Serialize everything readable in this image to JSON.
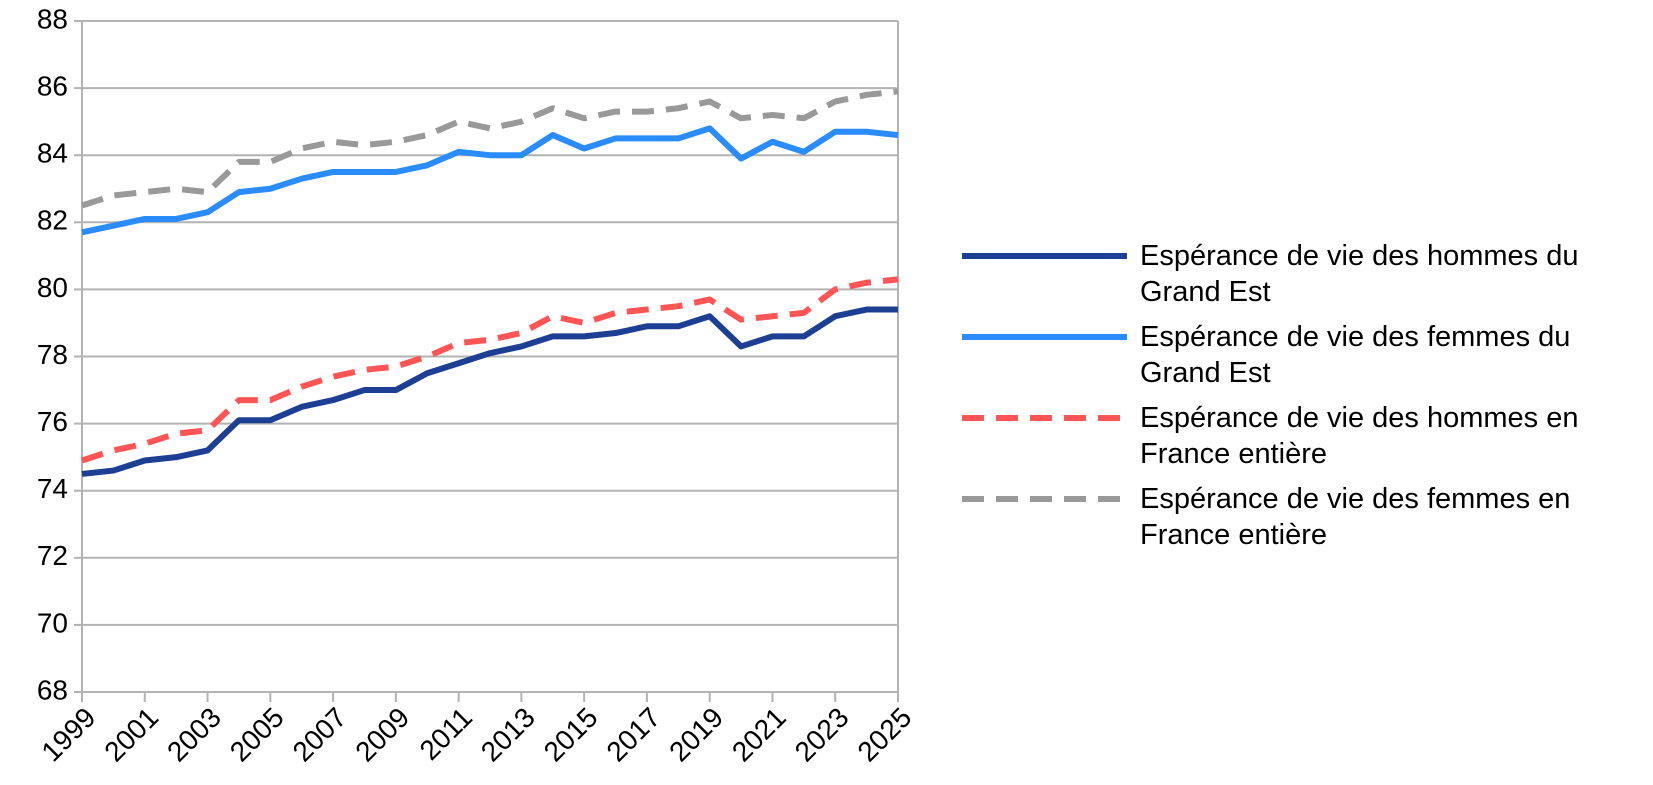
{
  "chart_data": {
    "type": "line",
    "x": [
      1999,
      2000,
      2001,
      2002,
      2003,
      2004,
      2005,
      2006,
      2007,
      2008,
      2009,
      2010,
      2011,
      2012,
      2013,
      2014,
      2015,
      2016,
      2017,
      2018,
      2019,
      2020,
      2021,
      2022,
      2023,
      2024,
      2025
    ],
    "xlim": [
      1999,
      2025
    ],
    "xticks": [
      1999,
      2001,
      2003,
      2005,
      2007,
      2009,
      2011,
      2013,
      2015,
      2017,
      2019,
      2021,
      2023,
      2025
    ],
    "ylim": [
      68,
      88
    ],
    "yticks": [
      68,
      70,
      72,
      74,
      76,
      78,
      80,
      82,
      84,
      86,
      88
    ],
    "grid": true,
    "legend": "right",
    "series": [
      {
        "name": "Espérance de vie des hommes du Grand Est",
        "color": "#1c3f94",
        "dashed": false,
        "values": [
          74.5,
          74.6,
          74.9,
          75.0,
          75.2,
          76.1,
          76.1,
          76.5,
          76.7,
          77.0,
          77.0,
          77.5,
          77.8,
          78.1,
          78.3,
          78.6,
          78.6,
          78.7,
          78.9,
          78.9,
          79.2,
          78.3,
          78.6,
          78.6,
          79.2,
          79.4,
          79.4
        ]
      },
      {
        "name": "Espérance de vie des femmes du Grand Est",
        "color": "#2a8cff",
        "dashed": false,
        "values": [
          81.7,
          81.9,
          82.1,
          82.1,
          82.3,
          82.9,
          83.0,
          83.3,
          83.5,
          83.5,
          83.5,
          83.7,
          84.1,
          84.0,
          84.0,
          84.6,
          84.2,
          84.5,
          84.5,
          84.5,
          84.8,
          83.9,
          84.4,
          84.1,
          84.7,
          84.7,
          84.6
        ]
      },
      {
        "name": "Espérance de vie des hommes en France entière",
        "color": "#ff5555",
        "dashed": true,
        "values": [
          74.9,
          75.2,
          75.4,
          75.7,
          75.8,
          76.7,
          76.7,
          77.1,
          77.4,
          77.6,
          77.7,
          78.0,
          78.4,
          78.5,
          78.7,
          79.2,
          79.0,
          79.3,
          79.4,
          79.5,
          79.7,
          79.1,
          79.2,
          79.3,
          80.0,
          80.2,
          80.3
        ]
      },
      {
        "name": "Espérance de vie des femmes en France entière",
        "color": "#999999",
        "dashed": true,
        "values": [
          82.5,
          82.8,
          82.9,
          83.0,
          82.9,
          83.8,
          83.8,
          84.2,
          84.4,
          84.3,
          84.4,
          84.6,
          85.0,
          84.8,
          85.0,
          85.4,
          85.1,
          85.3,
          85.3,
          85.4,
          85.6,
          85.1,
          85.2,
          85.1,
          85.6,
          85.8,
          85.9
        ]
      }
    ]
  }
}
